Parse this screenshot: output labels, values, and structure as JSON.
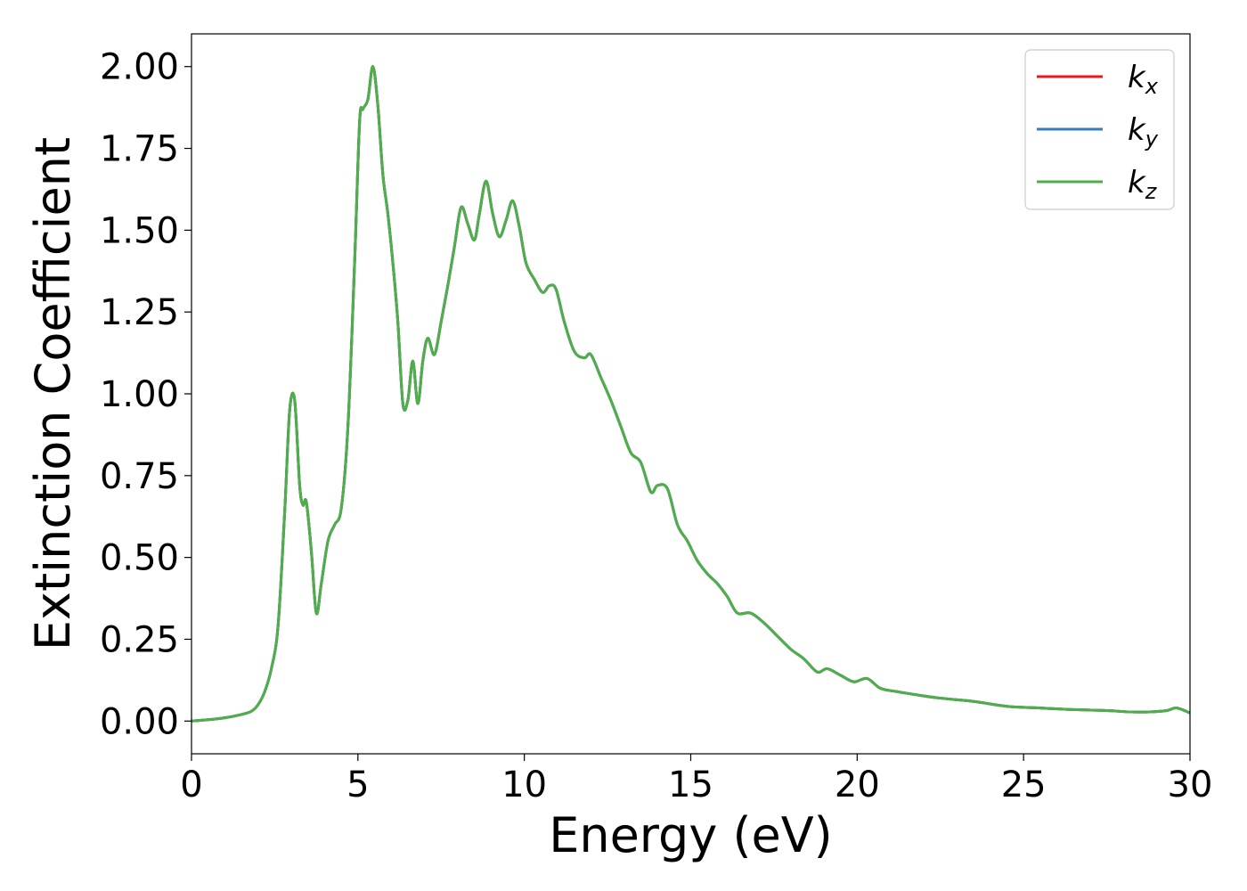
{
  "chart_data": {
    "type": "line",
    "xlabel": "Energy (eV)",
    "ylabel": "Extinction Coefficient",
    "xlim": [
      0,
      30
    ],
    "ylim": [
      -0.1,
      2.1
    ],
    "xticks": [
      0,
      5,
      10,
      15,
      20,
      25,
      30
    ],
    "xtick_labels": [
      "0",
      "5",
      "10",
      "15",
      "20",
      "25",
      "30"
    ],
    "yticks": [
      0.0,
      0.25,
      0.5,
      0.75,
      1.0,
      1.25,
      1.5,
      1.75,
      2.0
    ],
    "ytick_labels": [
      "0.00",
      "0.25",
      "0.50",
      "0.75",
      "1.00",
      "1.25",
      "1.50",
      "1.75",
      "2.00"
    ],
    "grid": false,
    "legend_position": "top-right",
    "x": [
      0,
      0.5,
      1.0,
      1.5,
      1.8,
      2.0,
      2.2,
      2.4,
      2.6,
      2.8,
      2.95,
      3.1,
      3.25,
      3.35,
      3.45,
      3.6,
      3.75,
      3.9,
      4.1,
      4.3,
      4.5,
      4.7,
      4.9,
      5.05,
      5.15,
      5.3,
      5.45,
      5.6,
      5.75,
      5.9,
      6.05,
      6.2,
      6.35,
      6.5,
      6.65,
      6.8,
      6.95,
      7.1,
      7.3,
      7.5,
      7.7,
      7.9,
      8.1,
      8.3,
      8.5,
      8.65,
      8.85,
      9.05,
      9.25,
      9.45,
      9.65,
      9.85,
      10.05,
      10.3,
      10.55,
      10.75,
      10.95,
      11.2,
      11.5,
      11.8,
      12.0,
      12.3,
      12.6,
      12.9,
      13.2,
      13.5,
      13.8,
      14.0,
      14.3,
      14.6,
      14.9,
      15.2,
      15.5,
      15.8,
      16.1,
      16.4,
      16.8,
      17.2,
      17.6,
      18.0,
      18.4,
      18.8,
      19.1,
      19.5,
      19.9,
      20.3,
      20.7,
      21.2,
      21.8,
      22.5,
      23.5,
      24.5,
      25.5,
      26.5,
      27.5,
      28.2,
      28.8,
      29.3,
      29.6,
      30.0
    ],
    "series": [
      {
        "name": "k_x",
        "label_main": "k",
        "label_sub": "x",
        "color": "#e41a1c",
        "values": [
          0.0,
          0.004,
          0.01,
          0.02,
          0.03,
          0.05,
          0.09,
          0.16,
          0.29,
          0.64,
          0.95,
          0.98,
          0.72,
          0.66,
          0.67,
          0.52,
          0.33,
          0.42,
          0.55,
          0.6,
          0.65,
          0.9,
          1.4,
          1.83,
          1.87,
          1.9,
          2.0,
          1.88,
          1.67,
          1.55,
          1.4,
          1.22,
          0.97,
          0.98,
          1.1,
          0.97,
          1.1,
          1.17,
          1.12,
          1.22,
          1.33,
          1.45,
          1.57,
          1.52,
          1.47,
          1.55,
          1.65,
          1.55,
          1.48,
          1.53,
          1.59,
          1.51,
          1.4,
          1.35,
          1.31,
          1.33,
          1.32,
          1.22,
          1.13,
          1.11,
          1.12,
          1.05,
          0.98,
          0.9,
          0.82,
          0.79,
          0.7,
          0.72,
          0.71,
          0.6,
          0.55,
          0.49,
          0.45,
          0.42,
          0.38,
          0.33,
          0.33,
          0.3,
          0.26,
          0.22,
          0.19,
          0.15,
          0.16,
          0.14,
          0.12,
          0.13,
          0.1,
          0.09,
          0.08,
          0.07,
          0.06,
          0.045,
          0.04,
          0.035,
          0.032,
          0.028,
          0.028,
          0.032,
          0.04,
          0.025
        ]
      },
      {
        "name": "k_y",
        "label_main": "k",
        "label_sub": "y",
        "color": "#377eb8",
        "values": [
          0.0,
          0.004,
          0.01,
          0.02,
          0.03,
          0.05,
          0.09,
          0.16,
          0.29,
          0.64,
          0.95,
          0.98,
          0.72,
          0.66,
          0.67,
          0.52,
          0.33,
          0.42,
          0.55,
          0.6,
          0.65,
          0.9,
          1.4,
          1.83,
          1.87,
          1.9,
          2.0,
          1.88,
          1.67,
          1.55,
          1.4,
          1.22,
          0.97,
          0.98,
          1.1,
          0.97,
          1.1,
          1.17,
          1.12,
          1.22,
          1.33,
          1.45,
          1.57,
          1.52,
          1.47,
          1.55,
          1.65,
          1.55,
          1.48,
          1.53,
          1.59,
          1.51,
          1.4,
          1.35,
          1.31,
          1.33,
          1.32,
          1.22,
          1.13,
          1.11,
          1.12,
          1.05,
          0.98,
          0.9,
          0.82,
          0.79,
          0.7,
          0.72,
          0.71,
          0.6,
          0.55,
          0.49,
          0.45,
          0.42,
          0.38,
          0.33,
          0.33,
          0.3,
          0.26,
          0.22,
          0.19,
          0.15,
          0.16,
          0.14,
          0.12,
          0.13,
          0.1,
          0.09,
          0.08,
          0.07,
          0.06,
          0.045,
          0.04,
          0.035,
          0.032,
          0.028,
          0.028,
          0.032,
          0.04,
          0.025
        ]
      },
      {
        "name": "k_z",
        "label_main": "k",
        "label_sub": "z",
        "color": "#4daf4a",
        "values": [
          0.0,
          0.004,
          0.01,
          0.02,
          0.03,
          0.05,
          0.09,
          0.16,
          0.29,
          0.64,
          0.95,
          0.98,
          0.72,
          0.66,
          0.67,
          0.52,
          0.33,
          0.42,
          0.55,
          0.6,
          0.65,
          0.9,
          1.4,
          1.83,
          1.87,
          1.9,
          2.0,
          1.88,
          1.67,
          1.55,
          1.4,
          1.22,
          0.97,
          0.98,
          1.1,
          0.97,
          1.1,
          1.17,
          1.12,
          1.22,
          1.33,
          1.45,
          1.57,
          1.52,
          1.47,
          1.55,
          1.65,
          1.55,
          1.48,
          1.53,
          1.59,
          1.51,
          1.4,
          1.35,
          1.31,
          1.33,
          1.32,
          1.22,
          1.13,
          1.11,
          1.12,
          1.05,
          0.98,
          0.9,
          0.82,
          0.79,
          0.7,
          0.72,
          0.71,
          0.6,
          0.55,
          0.49,
          0.45,
          0.42,
          0.38,
          0.33,
          0.33,
          0.3,
          0.26,
          0.22,
          0.19,
          0.15,
          0.16,
          0.14,
          0.12,
          0.13,
          0.1,
          0.09,
          0.08,
          0.07,
          0.06,
          0.045,
          0.04,
          0.035,
          0.032,
          0.028,
          0.028,
          0.032,
          0.04,
          0.025
        ]
      }
    ]
  }
}
